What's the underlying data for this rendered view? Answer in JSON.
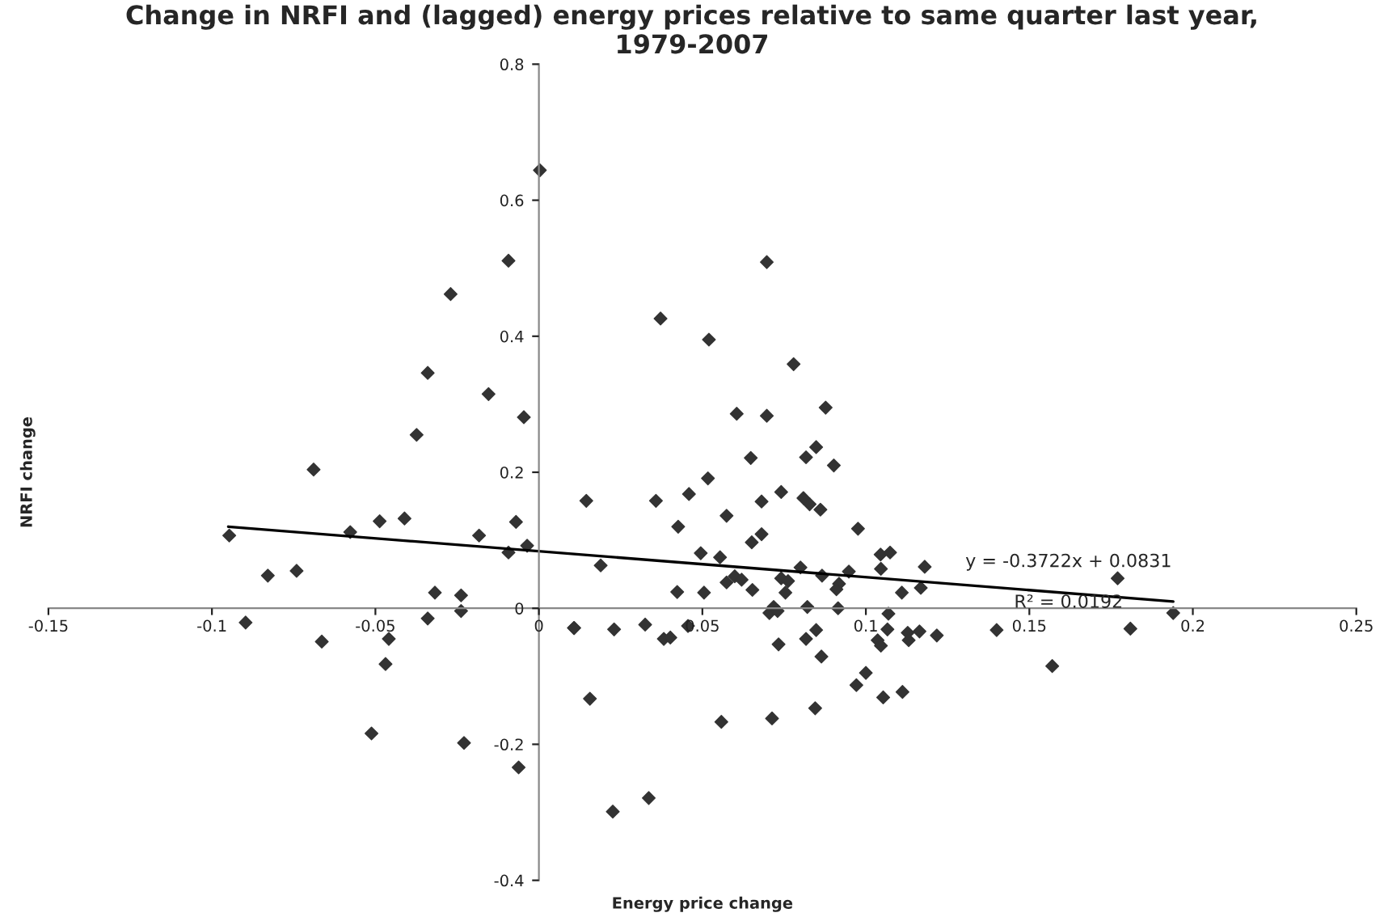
{
  "chart_data": {
    "type": "scatter",
    "title": "Change in NRFI and (lagged) energy prices relative to same quarter last year,\n1979-2007",
    "xlabel": "Energy price change",
    "ylabel": "NRFI change",
    "xlim": [
      -0.15,
      0.25
    ],
    "xticks": [
      -0.15,
      -0.1,
      -0.05,
      0,
      0.05,
      0.1,
      0.15,
      0.2,
      0.25
    ],
    "ylim": [
      -0.4,
      0.8
    ],
    "yticks": [
      -0.4,
      -0.2,
      0,
      0.2,
      0.4,
      0.6,
      0.8
    ],
    "grid": false,
    "legend": false,
    "series": [
      {
        "marker": "diamond",
        "color": "#333333",
        "x": [
          0.0003,
          -0.0093,
          -0.027,
          -0.034,
          -0.0154,
          -0.0046,
          -0.0374,
          -0.0689,
          -0.0947,
          -0.0577,
          -0.0487,
          -0.0411,
          -0.0183,
          -0.007,
          -0.0093,
          -0.0036,
          -0.0829,
          -0.0741,
          -0.0318,
          -0.0238,
          -0.0238,
          -0.0897,
          -0.034,
          -0.0664,
          -0.0459,
          -0.0469,
          -0.0512,
          -0.0229,
          -0.0062,
          0.0108,
          0.0697,
          0.0372,
          0.052,
          0.0779,
          0.0605,
          0.0697,
          0.0877,
          0.0848,
          0.0817,
          0.0648,
          0.0902,
          0.0145,
          0.0358,
          0.0459,
          0.0517,
          0.0741,
          0.0681,
          0.0809,
          0.0828,
          0.0861,
          0.0574,
          0.0426,
          0.0976,
          0.0651,
          0.0681,
          0.0495,
          0.0554,
          0.0189,
          0.1045,
          0.1074,
          0.1046,
          0.118,
          0.08,
          0.0866,
          0.0948,
          0.0918,
          0.091,
          0.0574,
          0.0599,
          0.062,
          0.0423,
          0.0505,
          0.0653,
          0.0741,
          0.0762,
          0.0754,
          0.111,
          0.1168,
          0.0718,
          0.0705,
          0.073,
          0.0821,
          0.0915,
          0.1069,
          0.0107,
          0.023,
          0.0325,
          0.0382,
          0.0402,
          0.0456,
          0.1066,
          0.1036,
          0.1046,
          0.1128,
          0.1164,
          0.1217,
          0.1131,
          0.0817,
          0.0848,
          0.0733,
          0.0864,
          0.0971,
          0.1,
          0.1053,
          0.1112,
          0.0845,
          0.0713,
          0.0558,
          0.0156,
          0.0336,
          0.0226,
          0.177,
          0.194,
          0.1809,
          0.14,
          0.157
        ],
        "values": [
          0.644,
          0.511,
          0.462,
          0.346,
          0.315,
          0.281,
          0.255,
          0.204,
          0.107,
          0.112,
          0.128,
          0.132,
          0.107,
          0.127,
          0.082,
          0.092,
          0.048,
          0.055,
          0.023,
          0.019,
          -0.004,
          -0.021,
          -0.015,
          -0.049,
          -0.045,
          -0.082,
          -0.184,
          -0.198,
          -0.234,
          -0.029,
          0.509,
          0.426,
          0.395,
          0.359,
          0.286,
          0.283,
          0.295,
          0.237,
          0.222,
          0.221,
          0.21,
          0.158,
          0.158,
          0.168,
          0.191,
          0.171,
          0.157,
          0.162,
          0.153,
          0.145,
          0.136,
          0.12,
          0.117,
          0.097,
          0.109,
          0.081,
          0.075,
          0.063,
          0.079,
          0.082,
          0.058,
          0.061,
          0.06,
          0.048,
          0.054,
          0.036,
          0.028,
          0.038,
          0.047,
          0.042,
          0.024,
          0.023,
          0.027,
          0.044,
          0.04,
          0.023,
          0.023,
          0.03,
          0.002,
          -0.007,
          -0.004,
          0.002,
          0.0,
          -0.008,
          -0.029,
          -0.031,
          -0.024,
          -0.045,
          -0.043,
          -0.026,
          -0.031,
          -0.047,
          -0.055,
          -0.036,
          -0.034,
          -0.04,
          -0.047,
          -0.045,
          -0.032,
          -0.053,
          -0.071,
          -0.113,
          -0.095,
          -0.131,
          -0.123,
          -0.147,
          -0.162,
          -0.167,
          -0.133,
          -0.279,
          -0.299,
          0.044,
          -0.007,
          -0.03,
          -0.032,
          -0.085
        ]
      },
      {
        "type": "line",
        "color": "#000000",
        "x": [
          -0.095,
          0.194
        ],
        "values": [
          0.12,
          0.01
        ]
      }
    ],
    "annotations": [
      "y = -0.3722x + 0.0831",
      "R² = 0.0192"
    ]
  }
}
